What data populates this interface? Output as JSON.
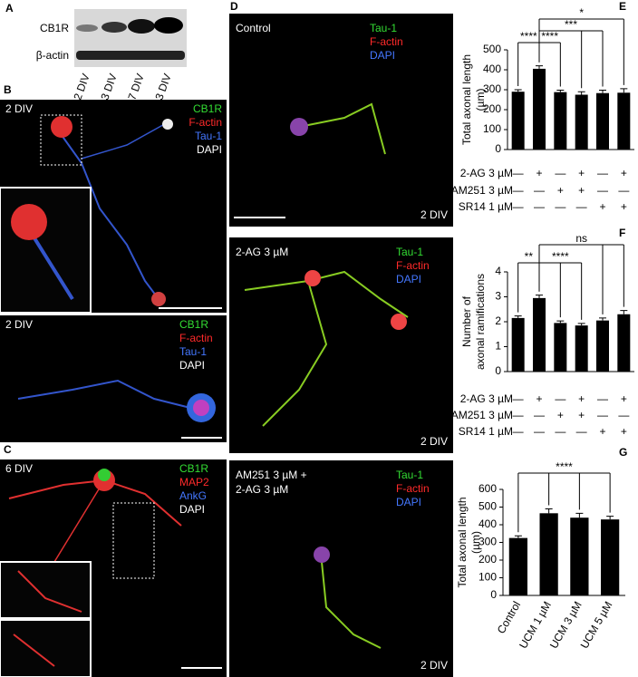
{
  "panels": {
    "A": {
      "label": "A",
      "rows": [
        "CB1R",
        "β-actin"
      ],
      "lanes": [
        "2 DIV",
        "3 DIV",
        "7 DIV",
        "13 DIV"
      ]
    },
    "B": {
      "label": "B",
      "images": [
        {
          "div": "2 DIV",
          "stains": [
            {
              "name": "CB1R",
              "color": "#33dd33"
            },
            {
              "name": "F-actin",
              "color": "#ff2a2a"
            },
            {
              "name": "Tau-1",
              "color": "#4477ff"
            },
            {
              "name": "DAPI",
              "color": "#ffffff"
            }
          ]
        },
        {
          "div": "2 DIV",
          "stains": [
            {
              "name": "CB1R",
              "color": "#33dd33"
            },
            {
              "name": "F-actin",
              "color": "#ff2a2a"
            },
            {
              "name": "Tau-1",
              "color": "#4477ff"
            },
            {
              "name": "DAPI",
              "color": "#ffffff"
            }
          ]
        }
      ]
    },
    "C": {
      "label": "C",
      "div": "6 DIV",
      "stains": [
        {
          "name": "CB1R",
          "color": "#33dd33"
        },
        {
          "name": "MAP2",
          "color": "#ff2a2a"
        },
        {
          "name": "AnkG",
          "color": "#4477ff"
        },
        {
          "name": "DAPI",
          "color": "#ffffff"
        }
      ]
    },
    "D": {
      "label": "D",
      "images": [
        {
          "condition": [
            "Control"
          ],
          "div": "2 DIV",
          "stains": [
            {
              "name": "Tau-1",
              "color": "#33dd33"
            },
            {
              "name": "F-actin",
              "color": "#ff2a2a"
            },
            {
              "name": "DAPI",
              "color": "#4477ff"
            }
          ]
        },
        {
          "condition": [
            "2-AG 3 µM"
          ],
          "div": "2 DIV",
          "stains": [
            {
              "name": "Tau-1",
              "color": "#33dd33"
            },
            {
              "name": "F-actin",
              "color": "#ff2a2a"
            },
            {
              "name": "DAPI",
              "color": "#4477ff"
            }
          ]
        },
        {
          "condition": [
            "AM251 3 µM +",
            "2-AG 3 µM"
          ],
          "div": "2 DIV",
          "stains": [
            {
              "name": "Tau-1",
              "color": "#33dd33"
            },
            {
              "name": "F-actin",
              "color": "#ff2a2a"
            },
            {
              "name": "DAPI",
              "color": "#4477ff"
            }
          ]
        }
      ]
    }
  },
  "chart_data": [
    {
      "type": "bar",
      "panel": "E",
      "y_label": [
        "Total axonal length",
        "(µm)"
      ],
      "values": [
        290,
        405,
        288,
        275,
        283,
        285
      ],
      "errors": [
        10,
        15,
        10,
        15,
        15,
        20
      ],
      "color": "#000000",
      "ylim": [
        0,
        500
      ],
      "yticks": [
        0,
        100,
        200,
        300,
        400,
        500
      ],
      "treatments": [
        {
          "name": "2-AG 3 µM",
          "signs": [
            "—",
            "+",
            "—",
            "+",
            "—",
            "+"
          ]
        },
        {
          "name": "AM251 3 µM",
          "signs": [
            "—",
            "—",
            "+",
            "+",
            "—",
            "—"
          ]
        },
        {
          "name": "SR14 1 µM",
          "signs": [
            "—",
            "—",
            "—",
            "—",
            "+",
            "+"
          ]
        }
      ],
      "annotations": [
        "****",
        "****",
        "***",
        "*"
      ]
    },
    {
      "type": "bar",
      "panel": "F",
      "y_label": [
        "Number of",
        "axonal ramifications"
      ],
      "values": [
        2.15,
        2.95,
        1.95,
        1.85,
        2.05,
        2.3
      ],
      "errors": [
        0.08,
        0.12,
        0.08,
        0.08,
        0.1,
        0.15
      ],
      "color": "#000000",
      "ylim": [
        0,
        4
      ],
      "yticks": [
        0,
        1,
        2,
        3,
        4
      ],
      "treatments": [
        {
          "name": "2-AG 3 µM",
          "signs": [
            "—",
            "+",
            "—",
            "+",
            "—",
            "+"
          ]
        },
        {
          "name": "AM251 3 µM",
          "signs": [
            "—",
            "—",
            "+",
            "+",
            "—",
            "—"
          ]
        },
        {
          "name": "SR14 1 µM",
          "signs": [
            "—",
            "—",
            "—",
            "—",
            "+",
            "+"
          ]
        }
      ],
      "annotations": [
        "**",
        "****",
        "ns"
      ]
    },
    {
      "type": "bar",
      "panel": "G",
      "y_label": [
        "Total axonal length",
        "(µm)"
      ],
      "categories": [
        "Control",
        "UCM 1 µM",
        "UCM 3 µM",
        "UCM 5 µM"
      ],
      "values": [
        325,
        465,
        440,
        430
      ],
      "errors": [
        12,
        25,
        25,
        18
      ],
      "color": "#000000",
      "ylim": [
        0,
        600
      ],
      "yticks": [
        0,
        100,
        200,
        300,
        400,
        500,
        600
      ],
      "annotations": [
        "****"
      ]
    }
  ]
}
